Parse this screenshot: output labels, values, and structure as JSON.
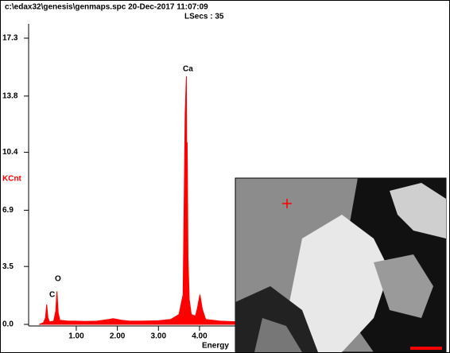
{
  "chart_data": {
    "type": "area",
    "title": "c:\\edax32\\genesis\\genmaps.spc  20-Dec-2017 11:07:09",
    "subtitle": "LSecs : 35",
    "y_label": "KCnt",
    "x_label": "Energy",
    "peak_labels": [
      "C",
      "O",
      "Ca"
    ],
    "color": "#ff0000",
    "xlim": [
      -0.16,
      10
    ],
    "ylim": [
      0,
      17.3
    ],
    "xticks": [
      {
        "value": 1,
        "label": "1.00"
      },
      {
        "value": 2,
        "label": "2.00"
      },
      {
        "value": 3,
        "label": "3.00"
      },
      {
        "value": 4,
        "label": "4.00"
      }
    ],
    "yticks": [
      {
        "value": 0,
        "label": "0.0"
      },
      3.5,
      6.9,
      10.4,
      13.8,
      17.3
    ],
    "x": [
      0.1,
      0.2,
      0.25,
      0.28,
      0.31,
      0.35,
      0.45,
      0.5,
      0.53,
      0.56,
      0.6,
      0.8,
      1.0,
      1.2,
      1.5,
      1.8,
      1.9,
      2.0,
      2.1,
      2.3,
      2.6,
      3.0,
      3.3,
      3.5,
      3.6,
      3.65,
      3.68,
      3.69,
      3.7,
      3.72,
      3.75,
      3.8,
      3.9,
      3.95,
      4.01,
      4.07,
      4.15,
      4.5,
      5.0,
      6.0,
      7.0,
      8.0,
      9.0,
      10.0
    ],
    "values": [
      0.0,
      0.1,
      0.4,
      1.2,
      0.4,
      0.15,
      0.2,
      0.8,
      2.0,
      0.7,
      0.25,
      0.2,
      0.2,
      0.18,
      0.2,
      0.3,
      0.35,
      0.3,
      0.25,
      0.2,
      0.2,
      0.22,
      0.3,
      0.6,
      1.8,
      12.7,
      15.0,
      9,
      11,
      4,
      1.5,
      0.6,
      0.5,
      1.0,
      1.8,
      0.9,
      0.3,
      0.2,
      0.15,
      0.1,
      0.08,
      0.05,
      0.05,
      0.04
    ]
  }
}
